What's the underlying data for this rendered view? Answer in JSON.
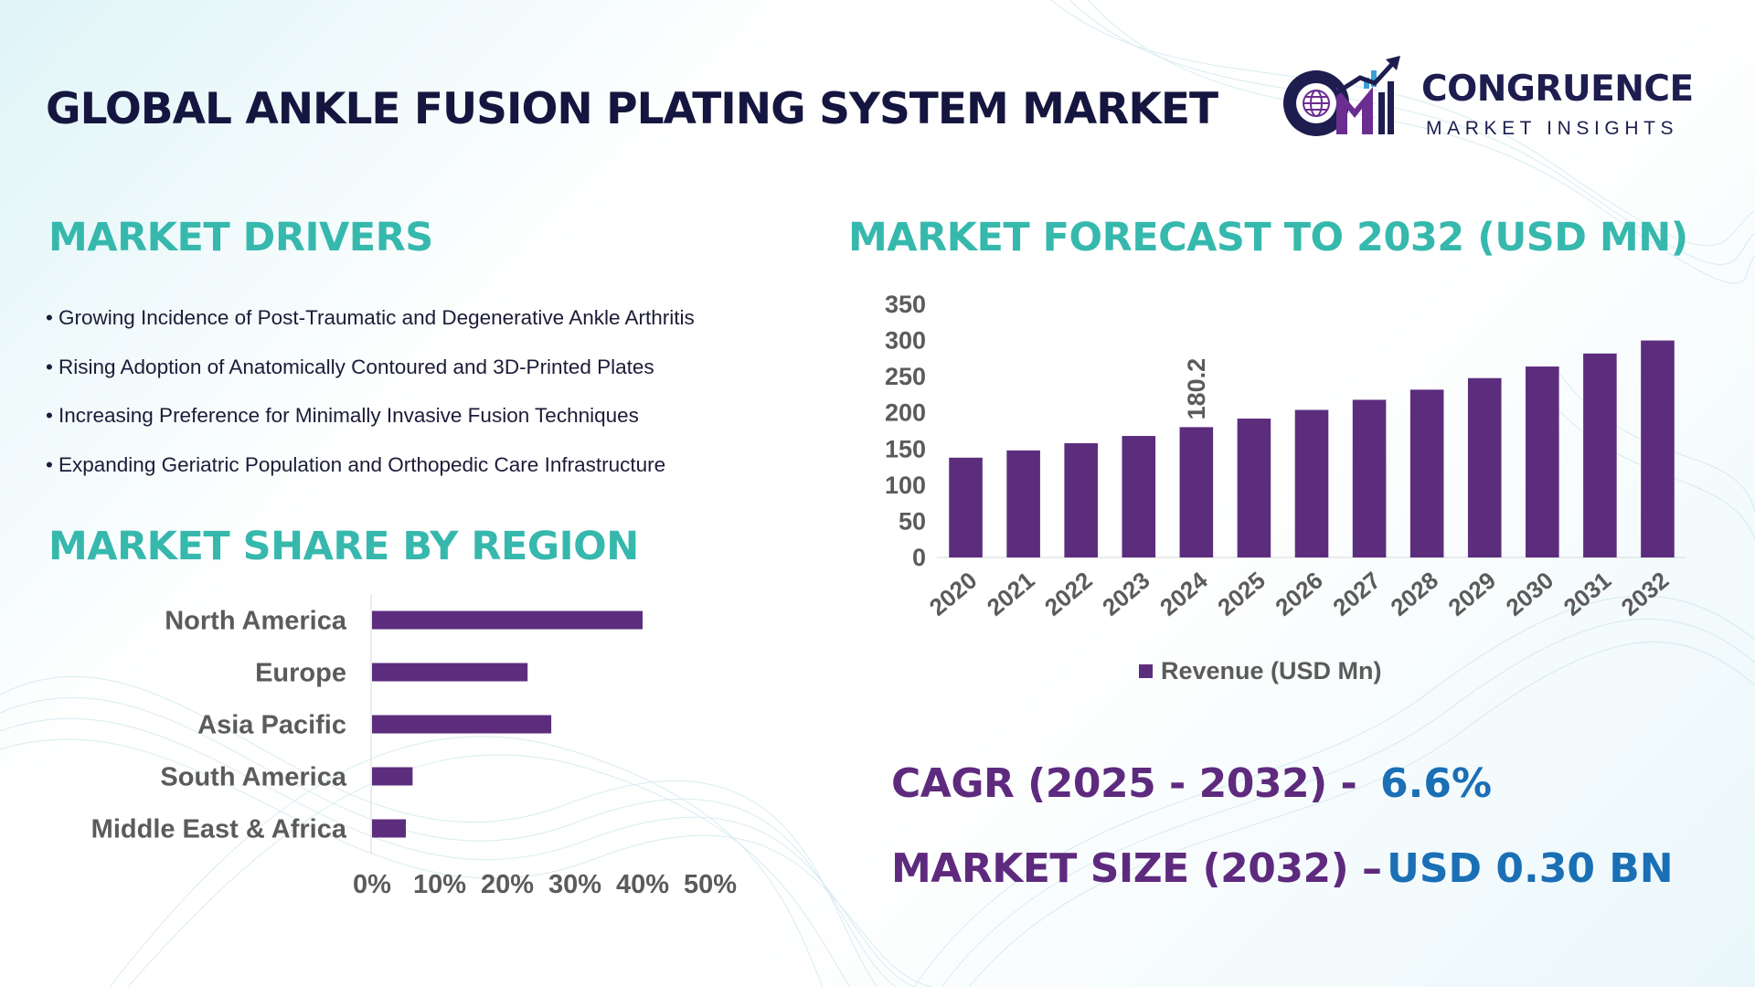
{
  "header": {
    "title": "GLOBAL ANKLE FUSION PLATING SYSTEM MARKET",
    "brand_name": "CONGRUENCE",
    "brand_subtitle": "MARKET INSIGHTS",
    "brand_initials": "CM"
  },
  "drivers": {
    "title": "MARKET DRIVERS",
    "items": [
      "Growing Incidence of Post-Traumatic and Degenerative Ankle Arthritis",
      "Rising Adoption of Anatomically Contoured and 3D-Printed Plates",
      "Increasing Preference for Minimally Invasive Fusion Techniques",
      "Expanding Geriatric Population and Orthopedic Care Infrastructure"
    ]
  },
  "forecast": {
    "title": "MARKET FORECAST TO 2032 (USD MN)"
  },
  "region": {
    "title": "MARKET SHARE BY REGION"
  },
  "stats": {
    "cagr_label": "CAGR (2025 - 2032) -",
    "cagr_value": "6.6%",
    "size_label": "MARKET SIZE (2032) –",
    "size_value": "USD 0.30 BN"
  },
  "colors": {
    "bar": "#5c2d7d",
    "section_title": "#36b8ad",
    "stat_label": "#5e2a7e",
    "stat_value": "#1a6fb5",
    "axis_text": "#5b5b5b"
  },
  "icons": [
    "globe-icon",
    "growth-bars-icon",
    "growth-arrow-icon"
  ],
  "chart_data": [
    {
      "type": "bar",
      "orientation": "vertical",
      "categories": [
        "2020",
        "2021",
        "2022",
        "2023",
        "2024",
        "2025",
        "2026",
        "2027",
        "2028",
        "2029",
        "2030",
        "2031",
        "2032"
      ],
      "series": [
        {
          "name": "Revenue (USD Mn)",
          "values": [
            138,
            148,
            158,
            168,
            180.2,
            192,
            204,
            218,
            232,
            248,
            264,
            282,
            300
          ]
        }
      ],
      "data_labels": [
        {
          "category": "2024",
          "text": "180.2"
        }
      ],
      "ylim": [
        0,
        350
      ],
      "yticks": [
        "0",
        "50",
        "100",
        "150",
        "200",
        "250",
        "300",
        "350"
      ],
      "grid": false,
      "legend": "bottom"
    },
    {
      "type": "bar",
      "orientation": "horizontal",
      "categories": [
        "North America",
        "Europe",
        "Asia Pacific",
        "South America",
        "Middle East & Africa"
      ],
      "values": [
        40,
        23,
        26.5,
        6,
        5
      ],
      "unit": "%",
      "xlim": [
        0,
        50
      ],
      "xticks": [
        "0%",
        "10%",
        "20%",
        "30%",
        "40%",
        "50%"
      ],
      "grid": false
    }
  ]
}
